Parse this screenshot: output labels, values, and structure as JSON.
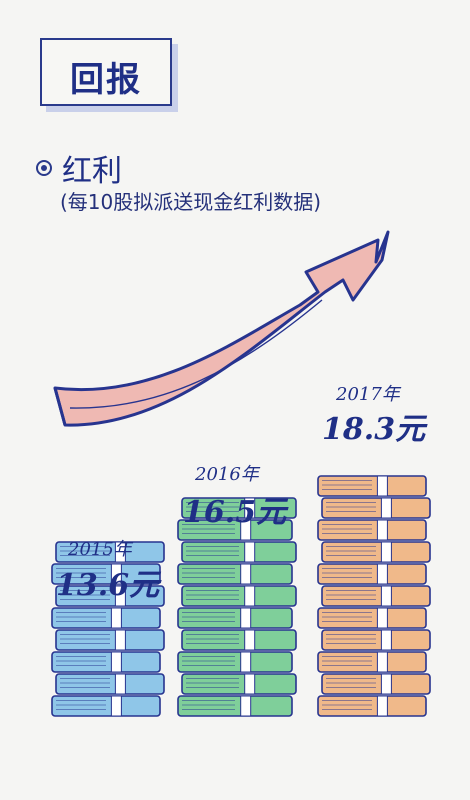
{
  "header": {
    "title": "回报"
  },
  "section": {
    "title": "红利",
    "subtitle": "(每10股拟派送现金红利数据)"
  },
  "chart_data": {
    "type": "bar",
    "categories": [
      "2015年",
      "2016年",
      "2017年"
    ],
    "values": [
      13.6,
      16.5,
      18.3
    ],
    "value_labels": [
      "13.6元",
      "16.5元",
      "18.3元"
    ],
    "title": "红利",
    "subtitle": "(每10股拟派送现金红利数据)",
    "unit": "元",
    "colors": [
      "#8fc6e8",
      "#7fcf9a",
      "#f0b98a"
    ]
  }
}
